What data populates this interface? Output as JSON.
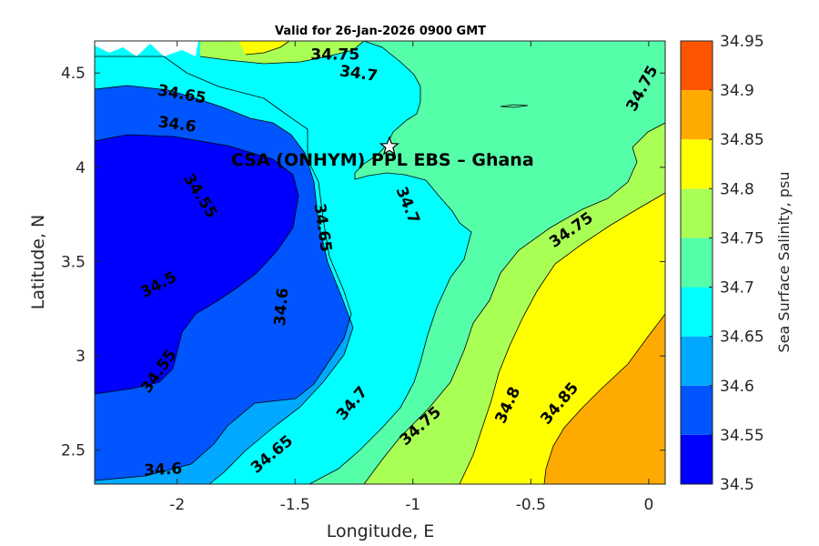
{
  "chart_data": {
    "type": "contour-map",
    "title": "Valid for 26-Jan-2026 0900 GMT",
    "xlabel": "Longitude, E",
    "ylabel": "Latitude, N",
    "xlim": [
      -2.35,
      0.07
    ],
    "ylim": [
      2.32,
      4.67
    ],
    "x_ticks": [
      {
        "value": -2,
        "label": "-2"
      },
      {
        "value": -1.5,
        "label": "-1.5"
      },
      {
        "value": -1,
        "label": "-1"
      },
      {
        "value": -0.5,
        "label": "-0.5"
      },
      {
        "value": 0,
        "label": "0"
      }
    ],
    "y_ticks": [
      {
        "value": 2.5,
        "label": "2.5"
      },
      {
        "value": 3,
        "label": "3"
      },
      {
        "value": 3.5,
        "label": "3.5"
      },
      {
        "value": 4,
        "label": "4"
      },
      {
        "value": 4.5,
        "label": "4.5"
      }
    ],
    "colorbar": {
      "label": "Sea Surface Salinity, psu",
      "levels": [
        34.5,
        34.55,
        34.6,
        34.65,
        34.7,
        34.75,
        34.8,
        34.85,
        34.9,
        34.95
      ],
      "tick_labels": [
        "34.5",
        "34.55",
        "34.6",
        "34.65",
        "34.7",
        "34.75",
        "34.8",
        "34.85",
        "34.9",
        "34.95"
      ],
      "colors": [
        "#0000ff",
        "#0055ff",
        "#00a9ff",
        "#00ffff",
        "#55ffaa",
        "#aaff55",
        "#ffff00",
        "#ffaa00",
        "#ff5500"
      ]
    },
    "contour_labels": [
      {
        "text": "34.75",
        "lon": -1.33,
        "lat": 4.6,
        "angle": 0
      },
      {
        "text": "34.7",
        "lon": -1.23,
        "lat": 4.5,
        "angle": 8
      },
      {
        "text": "34.65",
        "lon": -1.98,
        "lat": 4.39,
        "angle": 10
      },
      {
        "text": "34.6",
        "lon": -2.0,
        "lat": 4.23,
        "angle": 8
      },
      {
        "text": "34.55",
        "lon": -1.9,
        "lat": 3.85,
        "angle": 58
      },
      {
        "text": "34.65",
        "lon": -1.38,
        "lat": 3.68,
        "angle": 82
      },
      {
        "text": "34.7",
        "lon": -1.02,
        "lat": 3.8,
        "angle": 68
      },
      {
        "text": "34.75",
        "lon": -0.33,
        "lat": 3.67,
        "angle": -35
      },
      {
        "text": "34.75",
        "lon": -0.03,
        "lat": 4.42,
        "angle": -62
      },
      {
        "text": "34.5",
        "lon": -2.08,
        "lat": 3.38,
        "angle": -28
      },
      {
        "text": "34.6",
        "lon": -1.56,
        "lat": 3.26,
        "angle": -85
      },
      {
        "text": "34.55",
        "lon": -2.08,
        "lat": 2.92,
        "angle": -55
      },
      {
        "text": "34.6",
        "lon": -2.06,
        "lat": 2.4,
        "angle": -3
      },
      {
        "text": "34.65",
        "lon": -1.6,
        "lat": 2.48,
        "angle": -40
      },
      {
        "text": "34.7",
        "lon": -1.26,
        "lat": 2.75,
        "angle": -50
      },
      {
        "text": "34.75",
        "lon": -0.97,
        "lat": 2.63,
        "angle": -42
      },
      {
        "text": "34.8",
        "lon": -0.6,
        "lat": 2.74,
        "angle": -65
      },
      {
        "text": "34.85",
        "lon": -0.38,
        "lat": 2.75,
        "angle": -50
      }
    ],
    "site_marker": {
      "lon": -1.1,
      "lat": 4.11,
      "symbol": "star"
    },
    "site_label": "CSA (ONHYM) PPL EBS  – Ghana"
  }
}
